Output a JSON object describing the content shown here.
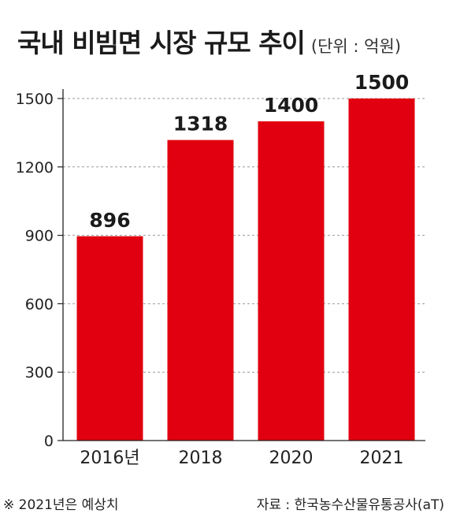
{
  "title": "국내 비빔면 시장 규모 추이",
  "unit": "(단위 : 억원)",
  "footnote": "※ 2021년은 예상치",
  "source": "자료 : 한국농수산물유통공사(aT)",
  "colors": {
    "bar": "#e1000f",
    "axis": "#222222",
    "grid": "#9a9a9a",
    "text": "#1b1b1b"
  },
  "chart_data": {
    "type": "bar",
    "categories": [
      "2016년",
      "2018",
      "2020",
      "2021"
    ],
    "values": [
      896,
      1318,
      1400,
      1500
    ],
    "data_labels": [
      "896",
      "1318",
      "1400",
      "1500"
    ],
    "y_ticks": [
      0,
      300,
      600,
      900,
      1200,
      1500
    ],
    "ylim": [
      0,
      1500
    ],
    "grid": true,
    "title": "국내 비빔면 시장 규모 추이",
    "xlabel": "",
    "ylabel": ""
  }
}
